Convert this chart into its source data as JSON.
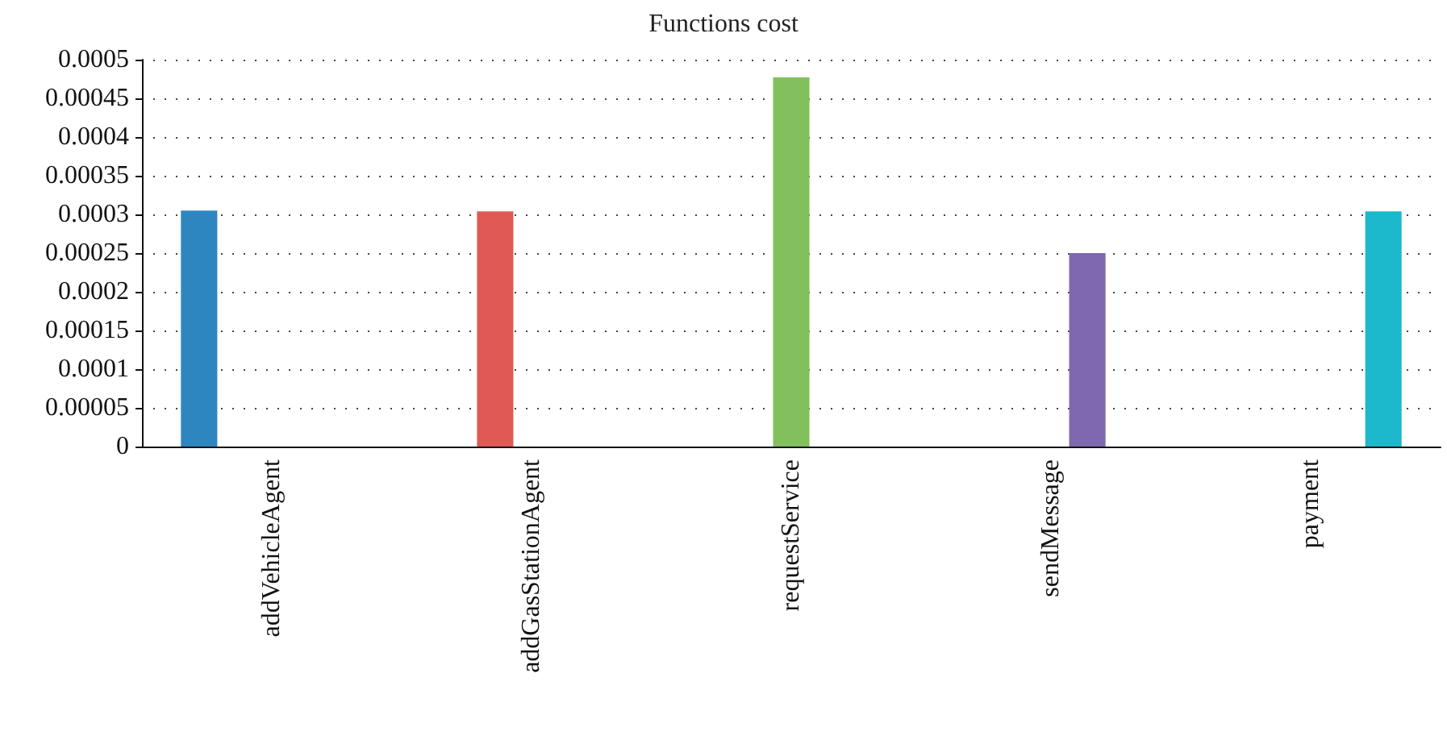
{
  "chart_data": {
    "type": "bar",
    "title": "Functions cost",
    "categories": [
      "addVehicleAgent",
      "addGasStationAgent",
      "requestService",
      "sendMessage",
      "payment"
    ],
    "series": [
      {
        "color": "#2e86c1",
        "values": [
          0.000305,
          0,
          0,
          0,
          0
        ]
      },
      {
        "color": "#e05a55",
        "values": [
          0,
          0.000304,
          0,
          0,
          0
        ]
      },
      {
        "color": "#82c05e",
        "values": [
          0,
          0,
          0.000477,
          0,
          0
        ]
      },
      {
        "color": "#8068ae",
        "values": [
          0,
          0,
          0,
          0.00025,
          0
        ]
      },
      {
        "color": "#1bb9cb",
        "values": [
          0,
          0,
          0,
          0,
          0.000304
        ]
      }
    ],
    "ylim": [
      0,
      0.0005
    ],
    "yticks": [
      0,
      {
        "value": 5e-05,
        "label": "0.00005"
      },
      0.0001,
      0.00015,
      0.0002,
      0.00025,
      0.0003,
      0.00035,
      0.0004,
      0.00045,
      0.0005
    ],
    "grid": "y"
  }
}
